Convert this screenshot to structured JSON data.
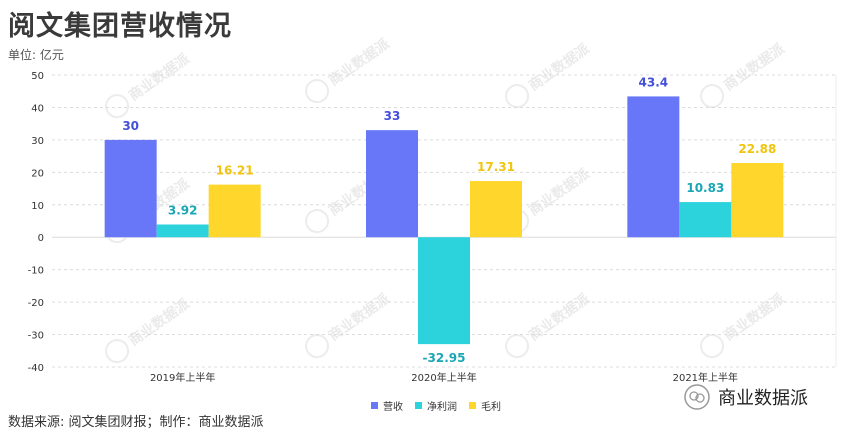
{
  "title": "阅文集团营收情况",
  "unit_label": "单位: 亿元",
  "source_label": "数据来源: 阅文集团财报；制作：商业数据派",
  "brand_label": "商业数据派",
  "watermark_text": "商业数据派",
  "chart_data": {
    "type": "bar",
    "categories": [
      "2019年上半年",
      "2020年上半年",
      "2021年上半年"
    ],
    "series": [
      {
        "name": "营收",
        "values": [
          30,
          33,
          43.4
        ],
        "labels": [
          "30",
          "33",
          "43.4"
        ],
        "color": "#6877f8",
        "label_color": "#4350d8"
      },
      {
        "name": "净利润",
        "values": [
          3.92,
          -32.95,
          10.83
        ],
        "labels": [
          "3.92",
          "-32.95",
          "10.83"
        ],
        "color": "#2dd3dc",
        "label_color": "#1aa6b4"
      },
      {
        "name": "毛利",
        "values": [
          16.21,
          17.31,
          22.88
        ],
        "labels": [
          "16.21",
          "17.31",
          "22.88"
        ],
        "color": "#ffd62c",
        "label_color": "#f1c40f"
      }
    ],
    "ylim": [
      -40,
      50
    ],
    "yticks": [
      "50",
      "40",
      "30",
      "20",
      "10",
      "0",
      "-10",
      "-20",
      "-30",
      "-40"
    ],
    "legend_position": "bottom",
    "grid": true
  },
  "colors": {
    "grid": "#dcdcdc",
    "axis_text": "#333333"
  }
}
